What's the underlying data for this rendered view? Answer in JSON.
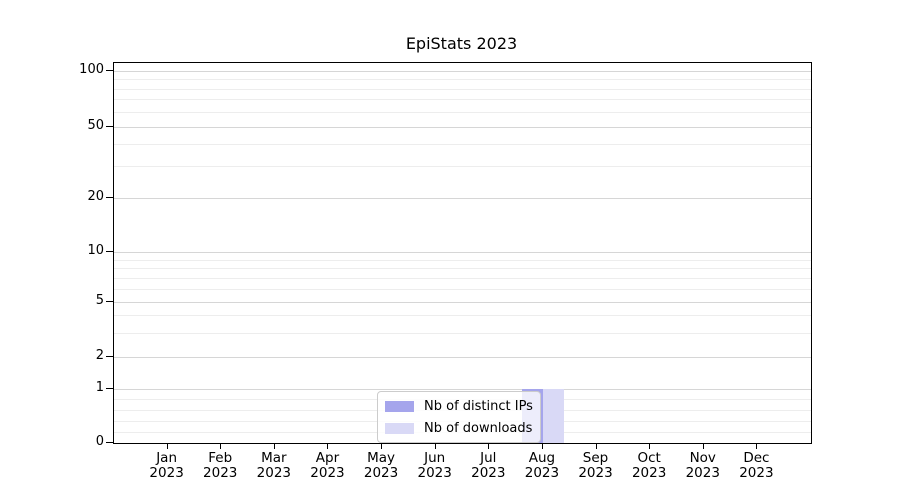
{
  "chart_data": {
    "type": "bar",
    "title": "EpiStats 2023",
    "months": [
      "Jan",
      "Feb",
      "Mar",
      "Apr",
      "May",
      "Jun",
      "Jul",
      "Aug",
      "Sep",
      "Oct",
      "Nov",
      "Dec"
    ],
    "year": "2023",
    "series": [
      {
        "name": "Nb of distinct IPs",
        "color": "#a5a5ec",
        "values": [
          0,
          0,
          0,
          0,
          0,
          0,
          0,
          1,
          0,
          0,
          0,
          0
        ]
      },
      {
        "name": "Nb of downloads",
        "color": "#d9d9f6",
        "values": [
          0,
          0,
          0,
          0,
          0,
          0,
          0,
          1,
          0,
          0,
          0,
          0
        ]
      }
    ],
    "yticks": [
      0,
      1,
      2,
      5,
      10,
      20,
      50,
      100
    ],
    "minor_yticks": [
      0.2,
      0.4,
      0.6,
      0.8,
      3,
      4,
      6,
      7,
      8,
      9,
      30,
      40,
      60,
      70,
      80,
      90
    ],
    "scale": "symlog",
    "ylim": [
      0,
      107
    ],
    "grid": "horizontal",
    "legend_position": "lower center",
    "colors": {
      "major_grid": "#d6d6d6",
      "minor_grid": "#ededed",
      "axis_frame": "#000000",
      "text": "#000000"
    }
  }
}
